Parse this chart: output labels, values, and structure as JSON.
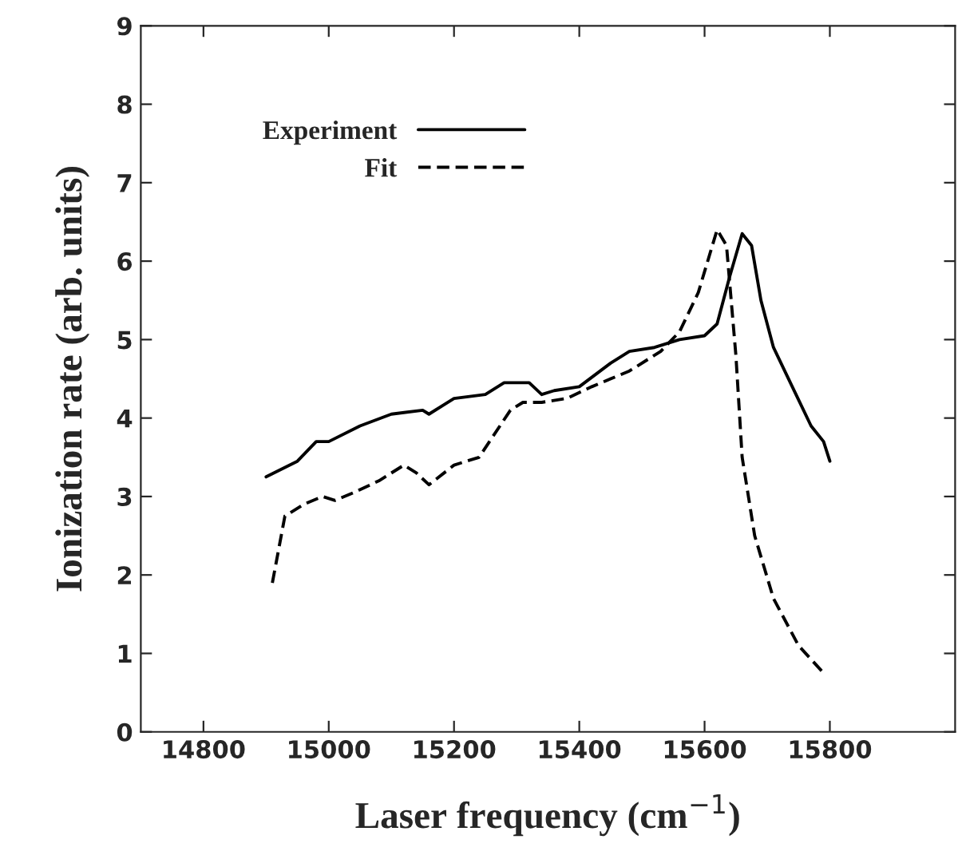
{
  "chart_data": {
    "type": "line",
    "xlabel": "Laser frequency (cm$^{−1}$)",
    "ylabel": "Ionization rate (arb. units)",
    "xlim": [
      14700,
      16000
    ],
    "xticks": [
      14800,
      15000,
      15200,
      15400,
      15600,
      15800
    ],
    "ylim": [
      0,
      9
    ],
    "yticks": [
      0,
      1,
      2,
      3,
      4,
      5,
      6,
      7,
      8,
      9
    ],
    "grid": false,
    "legend": "top left",
    "marker": "none",
    "series": [
      {
        "name": "Experiment",
        "color": "#000000",
        "line_style": "solid",
        "x": [
          14900,
          14950,
          14980,
          15000,
          15050,
          15100,
          15150,
          15160,
          15200,
          15250,
          15280,
          15320,
          15340,
          15360,
          15400,
          15450,
          15480,
          15520,
          15560,
          15600,
          15620,
          15640,
          15660,
          15675,
          15690,
          15710,
          15740,
          15770,
          15790,
          15800
        ],
        "values": [
          3.25,
          3.45,
          3.7,
          3.7,
          3.9,
          4.05,
          4.1,
          4.05,
          4.25,
          4.3,
          4.45,
          4.45,
          4.3,
          4.35,
          4.4,
          4.7,
          4.85,
          4.9,
          5.0,
          5.05,
          5.2,
          5.8,
          6.35,
          6.2,
          5.5,
          4.9,
          4.4,
          3.9,
          3.7,
          3.45
        ]
      },
      {
        "name": "Fit",
        "color": "#000000",
        "line_style": "dashed",
        "x": [
          14910,
          14930,
          14960,
          14990,
          15010,
          15040,
          15080,
          15120,
          15140,
          15160,
          15200,
          15240,
          15290,
          15310,
          15340,
          15380,
          15420,
          15480,
          15530,
          15560,
          15590,
          15620,
          15635,
          15650,
          15660,
          15680,
          15710,
          15750,
          15790
        ],
        "values": [
          1.9,
          2.75,
          2.9,
          3.0,
          2.95,
          3.05,
          3.2,
          3.4,
          3.3,
          3.15,
          3.4,
          3.5,
          4.1,
          4.2,
          4.2,
          4.25,
          4.4,
          4.6,
          4.85,
          5.1,
          5.6,
          6.4,
          6.2,
          4.8,
          3.5,
          2.5,
          1.7,
          1.1,
          0.75
        ]
      }
    ]
  }
}
